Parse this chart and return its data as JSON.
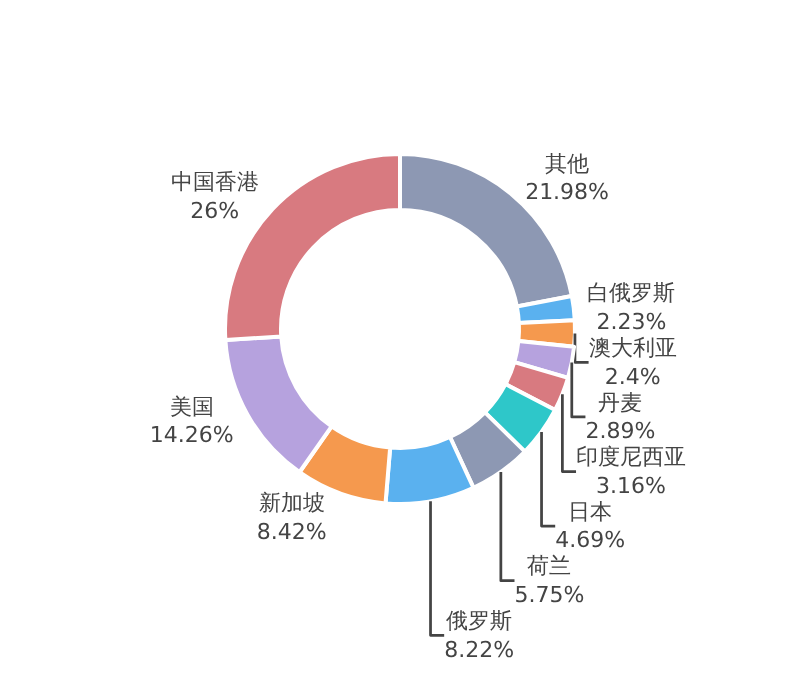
{
  "chart_data": {
    "type": "donut",
    "categories": [
      "其他",
      "白俄罗斯",
      "澳大利亚",
      "丹麦",
      "印度尼西亚",
      "日本",
      "荷兰",
      "俄罗斯",
      "新加坡",
      "美国",
      "中国香港"
    ],
    "values": [
      21.98,
      2.23,
      2.4,
      2.89,
      3.16,
      4.69,
      5.75,
      8.22,
      8.42,
      14.26,
      26
    ],
    "value_labels": [
      "21.98%",
      "2.23%",
      "2.4%",
      "2.89%",
      "3.16%",
      "4.69%",
      "5.75%",
      "8.22%",
      "8.42%",
      "14.26%",
      "26%"
    ],
    "colors": [
      "#8d98b3",
      "#5ab1ef",
      "#f5994e",
      "#b6a2de",
      "#d87a80",
      "#2ec7c9",
      "#8d98b3",
      "#5ab1ef",
      "#f5994e",
      "#b6a2de",
      "#d87a80"
    ],
    "legend": false
  }
}
